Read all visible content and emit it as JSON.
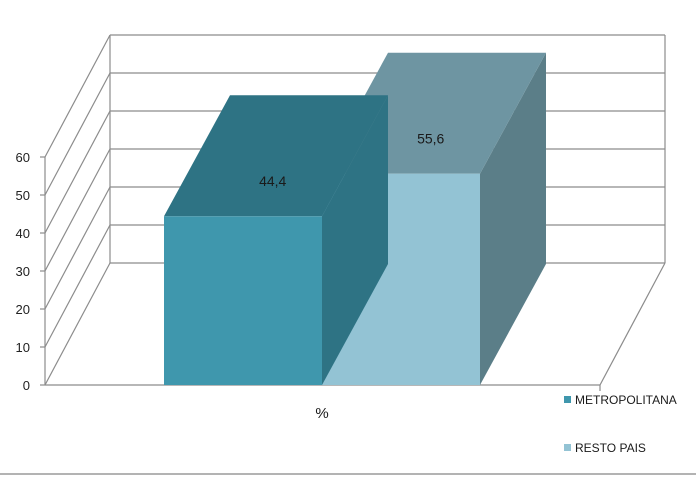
{
  "chart_data": {
    "type": "bar",
    "categories": [
      "%"
    ],
    "series": [
      {
        "name": "METROPOLITANA",
        "values": [
          44.4
        ],
        "label": "44,4",
        "color": "#3f97ad",
        "top_color": "#2e7384"
      },
      {
        "name": "RESTO PAIS",
        "values": [
          55.6
        ],
        "label": "55,6",
        "color": "#93c3d4",
        "top_color": "#6e95a2",
        "side_color": "#5b7e88"
      }
    ],
    "ylim": [
      0,
      60
    ],
    "yticks": [
      "0",
      "10",
      "20",
      "30",
      "40",
      "50",
      "60"
    ],
    "grid": true,
    "legend_position": "right",
    "style": "3d-column"
  }
}
